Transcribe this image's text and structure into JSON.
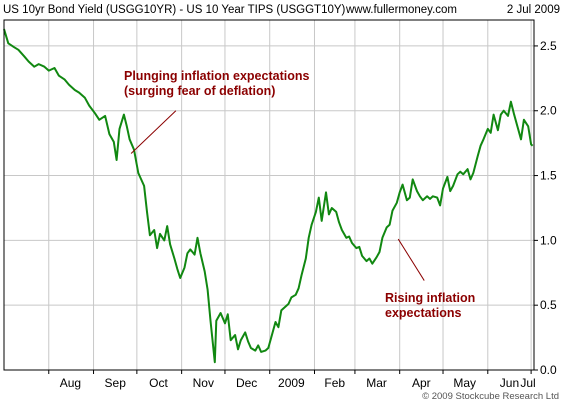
{
  "header": {
    "left_title": "US 10yr Bond Yield (USGG10YR) - US 10 Year TIPS (USGGT10Y)",
    "source": "www.fullermoney.com",
    "date": "2 Jul 2009"
  },
  "footer": {
    "copyright": "© 2009 Stockcube Research Ltd"
  },
  "colors": {
    "line": "#118811",
    "annotation": "#8b0000",
    "grid": "#c8c8c8",
    "frame": "#000000"
  },
  "chart_data": {
    "type": "line",
    "title": "US 10yr Bond Yield (USGG10YR) - US 10 Year TIPS (USGGT10Y)",
    "xlabel": "",
    "ylabel": "",
    "x_ticks": [
      "Aug",
      "Sep",
      "Oct",
      "Nov",
      "Dec",
      "2009",
      "Feb",
      "Mar",
      "Apr",
      "May",
      "Jun",
      "Jul"
    ],
    "y_ticks": [
      "0.0",
      "0.5",
      "1.0",
      "1.5",
      "2.0",
      "2.5"
    ],
    "ylim": [
      0,
      2.7
    ],
    "xlim": [
      "2008-07-01",
      "2009-07-03"
    ],
    "grid": true,
    "y_axis_side": "right",
    "series": [
      {
        "values": [
          [
            "2008-07-01",
            2.63
          ],
          [
            "2008-07-04",
            2.52
          ],
          [
            "2008-07-08",
            2.49
          ],
          [
            "2008-07-11",
            2.47
          ],
          [
            "2008-07-15",
            2.42
          ],
          [
            "2008-07-18",
            2.38
          ],
          [
            "2008-07-22",
            2.34
          ],
          [
            "2008-07-25",
            2.36
          ],
          [
            "2008-07-29",
            2.34
          ],
          [
            "2008-08-01",
            2.31
          ],
          [
            "2008-08-05",
            2.33
          ],
          [
            "2008-08-08",
            2.27
          ],
          [
            "2008-08-12",
            2.24
          ],
          [
            "2008-08-15",
            2.2
          ],
          [
            "2008-08-19",
            2.16
          ],
          [
            "2008-08-22",
            2.14
          ],
          [
            "2008-08-26",
            2.1
          ],
          [
            "2008-08-29",
            2.04
          ],
          [
            "2008-09-02",
            1.98
          ],
          [
            "2008-09-05",
            1.93
          ],
          [
            "2008-09-09",
            1.96
          ],
          [
            "2008-09-12",
            1.82
          ],
          [
            "2008-09-15",
            1.76
          ],
          [
            "2008-09-17",
            1.62
          ],
          [
            "2008-09-19",
            1.86
          ],
          [
            "2008-09-22",
            1.97
          ],
          [
            "2008-09-24",
            1.88
          ],
          [
            "2008-09-26",
            1.78
          ],
          [
            "2008-09-29",
            1.7
          ],
          [
            "2008-10-02",
            1.52
          ],
          [
            "2008-10-06",
            1.42
          ],
          [
            "2008-10-08",
            1.22
          ],
          [
            "2008-10-10",
            1.04
          ],
          [
            "2008-10-13",
            1.08
          ],
          [
            "2008-10-15",
            0.94
          ],
          [
            "2008-10-17",
            1.05
          ],
          [
            "2008-10-20",
            1.0
          ],
          [
            "2008-10-22",
            1.11
          ],
          [
            "2008-10-24",
            0.97
          ],
          [
            "2008-10-27",
            0.86
          ],
          [
            "2008-10-29",
            0.78
          ],
          [
            "2008-10-31",
            0.71
          ],
          [
            "2008-11-03",
            0.79
          ],
          [
            "2008-11-05",
            0.9
          ],
          [
            "2008-11-07",
            0.93
          ],
          [
            "2008-11-10",
            0.89
          ],
          [
            "2008-11-12",
            1.02
          ],
          [
            "2008-11-14",
            0.9
          ],
          [
            "2008-11-17",
            0.76
          ],
          [
            "2008-11-19",
            0.62
          ],
          [
            "2008-11-21",
            0.38
          ],
          [
            "2008-11-24",
            0.06
          ],
          [
            "2008-11-25",
            0.38
          ],
          [
            "2008-11-28",
            0.44
          ],
          [
            "2008-12-01",
            0.36
          ],
          [
            "2008-12-03",
            0.43
          ],
          [
            "2008-12-05",
            0.23
          ],
          [
            "2008-12-08",
            0.27
          ],
          [
            "2008-12-10",
            0.16
          ],
          [
            "2008-12-12",
            0.23
          ],
          [
            "2008-12-15",
            0.29
          ],
          [
            "2008-12-17",
            0.22
          ],
          [
            "2008-12-19",
            0.17
          ],
          [
            "2008-12-22",
            0.15
          ],
          [
            "2008-12-24",
            0.19
          ],
          [
            "2008-12-26",
            0.14
          ],
          [
            "2008-12-29",
            0.15
          ],
          [
            "2008-12-31",
            0.17
          ],
          [
            "2009-01-02",
            0.25
          ],
          [
            "2009-01-05",
            0.37
          ],
          [
            "2009-01-07",
            0.33
          ],
          [
            "2009-01-09",
            0.46
          ],
          [
            "2009-01-12",
            0.49
          ],
          [
            "2009-01-14",
            0.51
          ],
          [
            "2009-01-16",
            0.56
          ],
          [
            "2009-01-19",
            0.58
          ],
          [
            "2009-01-21",
            0.63
          ],
          [
            "2009-01-23",
            0.73
          ],
          [
            "2009-01-26",
            0.86
          ],
          [
            "2009-01-28",
            1.02
          ],
          [
            "2009-01-30",
            1.12
          ],
          [
            "2009-02-02",
            1.22
          ],
          [
            "2009-02-04",
            1.33
          ],
          [
            "2009-02-06",
            1.15
          ],
          [
            "2009-02-09",
            1.37
          ],
          [
            "2009-02-11",
            1.2
          ],
          [
            "2009-02-13",
            1.25
          ],
          [
            "2009-02-16",
            1.22
          ],
          [
            "2009-02-18",
            1.14
          ],
          [
            "2009-02-20",
            1.08
          ],
          [
            "2009-02-23",
            1.02
          ],
          [
            "2009-02-25",
            1.03
          ],
          [
            "2009-02-27",
            0.98
          ],
          [
            "2009-03-02",
            0.94
          ],
          [
            "2009-03-04",
            0.95
          ],
          [
            "2009-03-06",
            0.88
          ],
          [
            "2009-03-09",
            0.84
          ],
          [
            "2009-03-11",
            0.86
          ],
          [
            "2009-03-13",
            0.82
          ],
          [
            "2009-03-16",
            0.87
          ],
          [
            "2009-03-18",
            0.91
          ],
          [
            "2009-03-20",
            1.02
          ],
          [
            "2009-03-23",
            1.1
          ],
          [
            "2009-03-25",
            1.12
          ],
          [
            "2009-03-27",
            1.23
          ],
          [
            "2009-03-30",
            1.29
          ],
          [
            "2009-04-01",
            1.37
          ],
          [
            "2009-04-03",
            1.43
          ],
          [
            "2009-04-06",
            1.31
          ],
          [
            "2009-04-08",
            1.33
          ],
          [
            "2009-04-10",
            1.47
          ],
          [
            "2009-04-13",
            1.38
          ],
          [
            "2009-04-15",
            1.34
          ],
          [
            "2009-04-17",
            1.31
          ],
          [
            "2009-04-20",
            1.34
          ],
          [
            "2009-04-22",
            1.32
          ],
          [
            "2009-04-24",
            1.34
          ],
          [
            "2009-04-27",
            1.33
          ],
          [
            "2009-04-29",
            1.27
          ],
          [
            "2009-05-01",
            1.4
          ],
          [
            "2009-05-04",
            1.49
          ],
          [
            "2009-05-06",
            1.38
          ],
          [
            "2009-05-08",
            1.42
          ],
          [
            "2009-05-11",
            1.51
          ],
          [
            "2009-05-13",
            1.53
          ],
          [
            "2009-05-15",
            1.51
          ],
          [
            "2009-05-18",
            1.55
          ],
          [
            "2009-05-20",
            1.47
          ],
          [
            "2009-05-22",
            1.52
          ],
          [
            "2009-05-25",
            1.65
          ],
          [
            "2009-05-27",
            1.73
          ],
          [
            "2009-05-29",
            1.78
          ],
          [
            "2009-06-01",
            1.86
          ],
          [
            "2009-06-03",
            1.83
          ],
          [
            "2009-06-05",
            1.97
          ],
          [
            "2009-06-08",
            1.85
          ],
          [
            "2009-06-10",
            1.97
          ],
          [
            "2009-06-12",
            2.0
          ],
          [
            "2009-06-15",
            1.96
          ],
          [
            "2009-06-17",
            2.07
          ],
          [
            "2009-06-19",
            1.98
          ],
          [
            "2009-06-22",
            1.86
          ],
          [
            "2009-06-24",
            1.78
          ],
          [
            "2009-06-26",
            1.93
          ],
          [
            "2009-06-29",
            1.88
          ],
          [
            "2009-07-01",
            1.74
          ],
          [
            "2009-07-02",
            1.73
          ]
        ]
      }
    ],
    "annotations": [
      {
        "lines": [
          "Plunging inflation expectations",
          "(surging fear of deflation)"
        ],
        "arrow_from": [
          "2008-10-28",
          2.0
        ],
        "arrow_to": [
          "2008-09-27",
          1.67
        ]
      },
      {
        "lines": [
          "Rising inflation",
          "expectations"
        ],
        "arrow_from": [
          "2009-04-18",
          0.69
        ],
        "arrow_to": [
          "2009-03-31",
          1.01
        ]
      }
    ]
  }
}
